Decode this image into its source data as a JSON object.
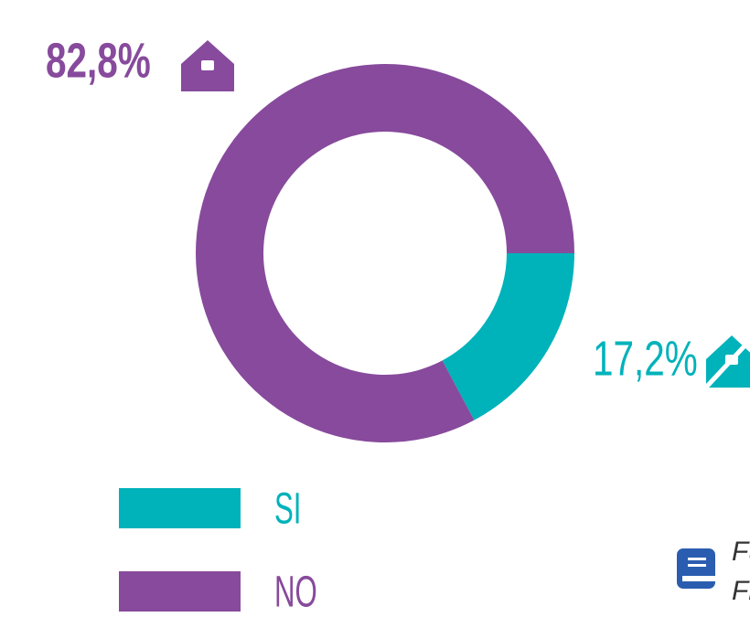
{
  "chart_data": {
    "type": "donut",
    "categories": [
      "SI",
      "NO"
    ],
    "values": [
      17.2,
      82.8
    ],
    "value_labels": [
      "17,2%",
      "82,8%"
    ],
    "colors": [
      "#00b2ba",
      "#874a9c"
    ]
  },
  "source_lines": [
    "Fu",
    "Fr"
  ]
}
